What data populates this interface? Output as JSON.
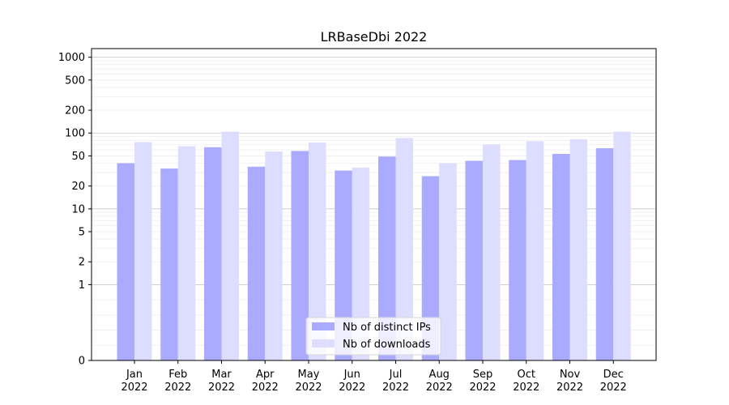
{
  "chart_data": {
    "type": "bar",
    "title": "LRBaseDbi 2022",
    "xlabel": "",
    "ylabel": "",
    "yscale": "symlog",
    "ylim": [
      0,
      1300
    ],
    "yticks": [
      0,
      1,
      2,
      5,
      10,
      20,
      50,
      100,
      200,
      500,
      1000
    ],
    "categories": [
      [
        "Jan",
        "2022"
      ],
      [
        "Feb",
        "2022"
      ],
      [
        "Mar",
        "2022"
      ],
      [
        "Apr",
        "2022"
      ],
      [
        "May",
        "2022"
      ],
      [
        "Jun",
        "2022"
      ],
      [
        "Jul",
        "2022"
      ],
      [
        "Aug",
        "2022"
      ],
      [
        "Sep",
        "2022"
      ],
      [
        "Oct",
        "2022"
      ],
      [
        "Nov",
        "2022"
      ],
      [
        "Dec",
        "2022"
      ]
    ],
    "series": [
      {
        "name": "Nb of distinct IPs",
        "color": "#aaaaff",
        "values": [
          40,
          34,
          65,
          36,
          58,
          32,
          49,
          27,
          43,
          44,
          53,
          63
        ]
      },
      {
        "name": "Nb of downloads",
        "color": "#ddddff",
        "values": [
          76,
          67,
          104,
          57,
          75,
          35,
          86,
          40,
          71,
          78,
          83,
          104
        ]
      }
    ],
    "grid": true,
    "legend_position": "bottom-center"
  }
}
